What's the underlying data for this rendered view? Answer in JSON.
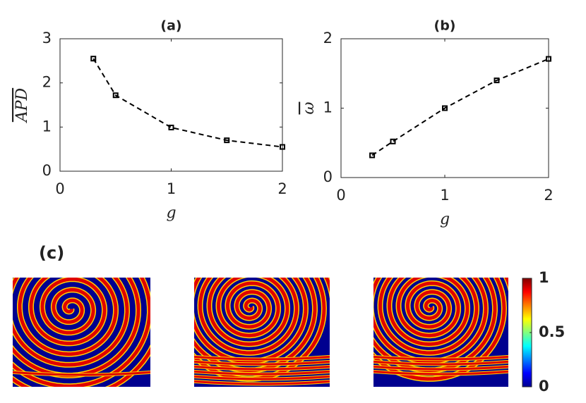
{
  "chart_data": [
    {
      "type": "line",
      "title": "(a)",
      "xlabel": "g",
      "ylabel": "APD",
      "x": [
        0.3,
        0.5,
        1.0,
        1.5,
        2.0
      ],
      "values": [
        2.55,
        1.72,
        0.99,
        0.7,
        0.55
      ],
      "color": "#000000",
      "linestyle": "dashed",
      "marker": "square",
      "xlim": [
        0,
        2
      ],
      "ylim": [
        0,
        3
      ],
      "xticks": [
        0,
        1,
        2
      ],
      "yticks": [
        0,
        1,
        2,
        3
      ]
    },
    {
      "type": "line",
      "title": "(b)",
      "xlabel": "g",
      "ylabel": "ω",
      "x": [
        0.3,
        0.5,
        1.0,
        1.5,
        2.0
      ],
      "values": [
        0.32,
        0.52,
        1.0,
        1.4,
        1.71
      ],
      "color": "#000000",
      "linestyle": "dashed",
      "marker": "square",
      "xlim": [
        0,
        2
      ],
      "ylim": [
        0,
        2
      ],
      "xticks": [
        0,
        1,
        2
      ],
      "yticks": [
        0,
        1,
        2
      ]
    }
  ],
  "panel_c": {
    "label": "(c)",
    "colorbar": {
      "lim": [
        0,
        1
      ],
      "ticks": [
        0,
        0.5,
        1
      ]
    }
  }
}
